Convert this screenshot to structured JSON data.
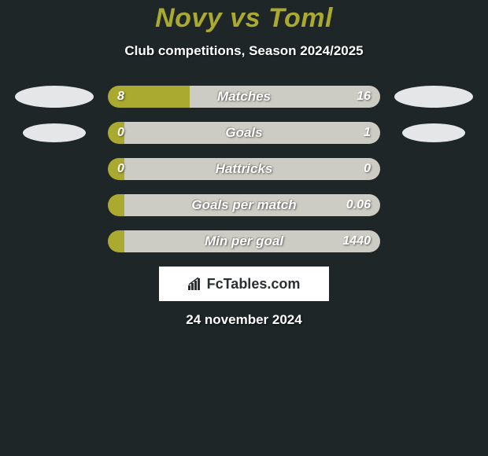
{
  "title": "Novy vs Toml",
  "subtitle": "Club competitions, Season 2024/2025",
  "brand": "FcTables.com",
  "date": "24 november 2024",
  "colors": {
    "background": "#1f2627",
    "accent": "#aaa930",
    "bar_right": "#cdccc4",
    "text": "#ffffff",
    "badge": "#e5e6e8"
  },
  "stats": [
    {
      "label": "Matches",
      "left_value": "8",
      "right_value": "16",
      "left_pct": 30,
      "show_left_badge": true,
      "show_right_badge": true,
      "badge_small": false
    },
    {
      "label": "Goals",
      "left_value": "0",
      "right_value": "1",
      "left_pct": 6,
      "show_left_badge": true,
      "show_right_badge": true,
      "badge_small": true
    },
    {
      "label": "Hattricks",
      "left_value": "0",
      "right_value": "0",
      "left_pct": 6,
      "show_left_badge": false,
      "show_right_badge": false,
      "badge_small": false
    },
    {
      "label": "Goals per match",
      "left_value": "",
      "right_value": "0.06",
      "left_pct": 6,
      "show_left_badge": false,
      "show_right_badge": false,
      "badge_small": false
    },
    {
      "label": "Min per goal",
      "left_value": "",
      "right_value": "1440",
      "left_pct": 6,
      "show_left_badge": false,
      "show_right_badge": false,
      "badge_small": false
    }
  ]
}
